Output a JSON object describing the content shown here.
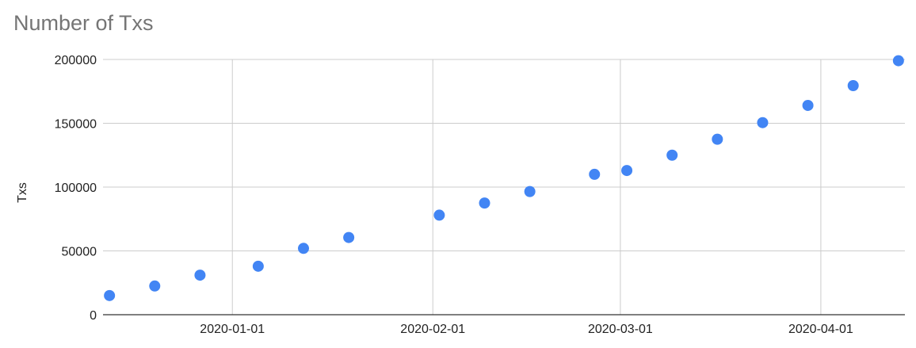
{
  "chart_data": {
    "type": "scatter",
    "title": "Number of Txs",
    "xlabel": "",
    "ylabel": "Txs",
    "x_type": "date",
    "xlim": [
      "2019-12-12",
      "2020-04-14"
    ],
    "ylim": [
      0,
      200000
    ],
    "y_ticks": [
      0,
      50000,
      100000,
      150000,
      200000
    ],
    "x_ticks": [
      "2020-01-01",
      "2020-02-01",
      "2020-03-01",
      "2020-04-01"
    ],
    "grid": true,
    "legend": "none",
    "point_color": "#4285f4",
    "series": [
      {
        "x": [
          "2019-12-13",
          "2019-12-20",
          "2019-12-27",
          "2020-01-05",
          "2020-01-12",
          "2020-01-19",
          "2020-02-02",
          "2020-02-09",
          "2020-02-16",
          "2020-02-26",
          "2020-03-02",
          "2020-03-09",
          "2020-03-16",
          "2020-03-23",
          "2020-03-30",
          "2020-04-06",
          "2020-04-13"
        ],
        "y": [
          15000,
          22500,
          31000,
          38000,
          52000,
          60500,
          78000,
          87500,
          96500,
          110000,
          113000,
          125000,
          137500,
          150500,
          164000,
          179500,
          199000
        ]
      }
    ]
  }
}
